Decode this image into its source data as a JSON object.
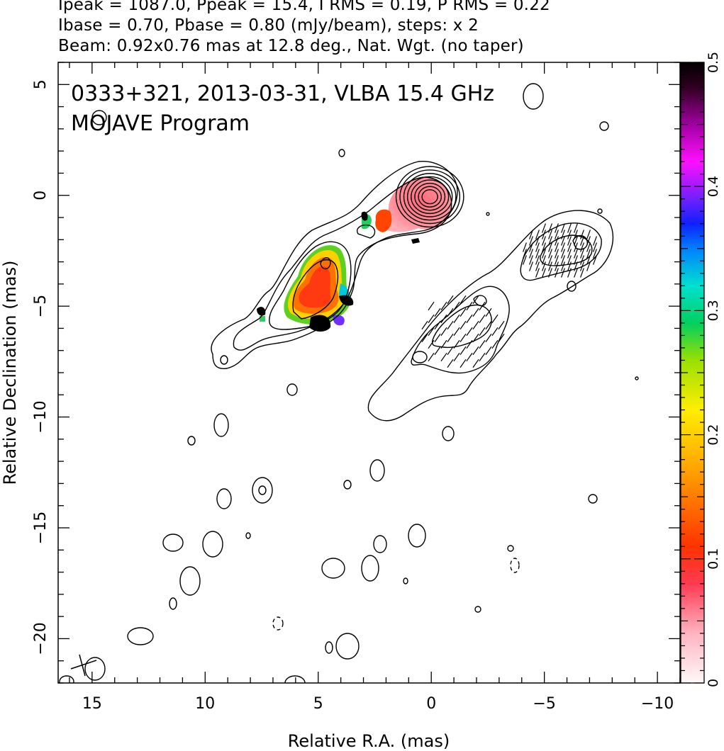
{
  "header": {
    "line1": "Ipeak = 1087.0, Ppeak = 15.4, I RMS = 0.19, P RMS = 0.22",
    "line2": "Ibase = 0.70, Pbase = 0.80 (mJy/beam), steps: x 2",
    "line3": "Beam: 0.92x0.76 mas at 12.8 deg., Nat. Wgt. (no taper)"
  },
  "panel": {
    "line1": "0333+321, 2013-03-31, VLBA 15.4 GHz",
    "line2": "MOJAVE Program"
  },
  "colors": {
    "contour": "#000000",
    "background": "#ffffff"
  },
  "chart_data": {
    "type": "heatmap",
    "xlabel": "Relative R.A. (mas)",
    "ylabel": "Relative Declination (mas)",
    "xlim": [
      16.5,
      -11
    ],
    "ylim": [
      -22,
      6
    ],
    "x_ticks": [
      15,
      10,
      5,
      0,
      -5,
      -10
    ],
    "y_ticks": [
      5,
      0,
      -5,
      -10,
      -15,
      -20
    ],
    "x_tick_labels": [
      "15",
      "10",
      "5",
      "0",
      "−5",
      "−10"
    ],
    "y_tick_labels": [
      "5",
      "0",
      "−5",
      "−10",
      "−15",
      "−20"
    ],
    "colorbar": {
      "range": [
        0,
        0.5
      ],
      "ticks": [
        0,
        0.1,
        0.2,
        0.3,
        0.4,
        0.5
      ],
      "tick_labels": [
        "0",
        "0.1",
        "0.2",
        "0.3",
        "0.4",
        "0.5"
      ]
    },
    "beam": {
      "major_mas": 0.92,
      "minor_mas": 0.76,
      "pa_deg": 12.8
    },
    "total_intensity": {
      "peak": 1087.0,
      "base": 0.7,
      "core_xy": [
        0,
        0
      ],
      "core_levels_radii_mas": [
        1.3,
        1.15,
        1.0,
        0.86,
        0.72,
        0.58,
        0.44,
        0.3
      ]
    },
    "polarization": {
      "peak": 15.4,
      "base": 0.8,
      "core_xy": [
        -7.0,
        -2.1
      ]
    }
  }
}
